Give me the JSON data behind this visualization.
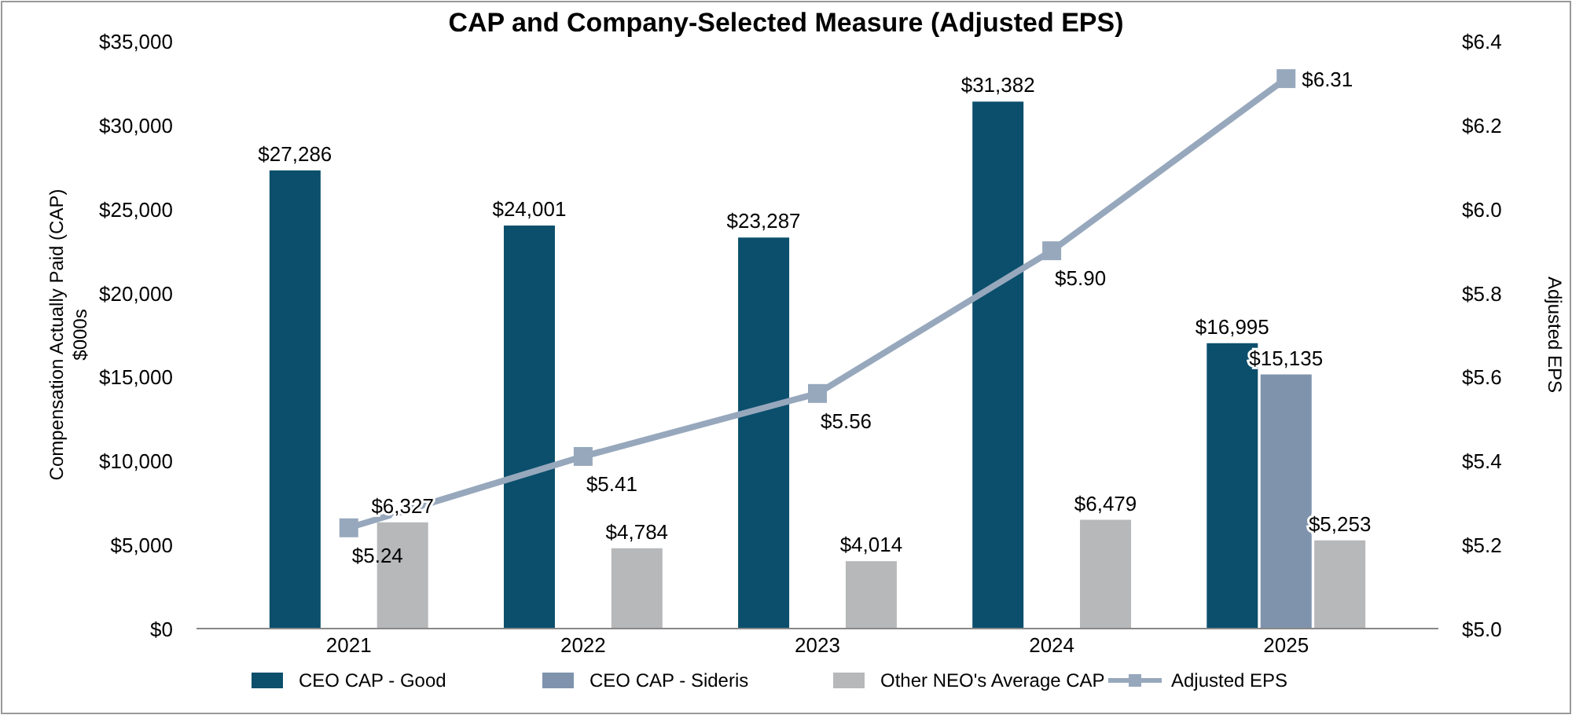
{
  "chart_data": {
    "type": "bar",
    "title": "CAP and Company-Selected Measure (Adjusted EPS)",
    "ylabel": "Compensation Actually Paid (CAP)\n$000s",
    "y2label": "Adjusted EPS",
    "categories": [
      "2021",
      "2022",
      "2023",
      "2024",
      "2025"
    ],
    "series": [
      {
        "name": "CEO CAP - Good",
        "color": "#0b4f6c",
        "values": [
          27286,
          24001,
          23287,
          31382,
          16995
        ],
        "value_labels": [
          "$27,286",
          "$24,001",
          "$23,287",
          "$31,382",
          "$16,995"
        ]
      },
      {
        "name": "CEO CAP - Sideris",
        "color": "#7f93ad",
        "values": [
          null,
          null,
          null,
          null,
          15135
        ],
        "value_labels": [
          null,
          null,
          null,
          null,
          "$15,135"
        ]
      },
      {
        "name": "Other NEO's Average CAP",
        "color": "#b7b8ba",
        "values": [
          6327,
          4784,
          4014,
          6479,
          5253
        ],
        "value_labels": [
          "$6,327",
          "$4,784",
          "$4,014",
          "$6,479",
          "$5,253"
        ]
      },
      {
        "name": "Adjusted EPS",
        "type": "line",
        "axis": "y2",
        "color": "#97a8bd",
        "values": [
          5.24,
          5.41,
          5.56,
          5.9,
          6.31
        ],
        "value_labels": [
          "$5.24",
          "$5.41",
          "$5.56",
          "$5.90",
          "$6.31"
        ]
      }
    ],
    "ylim": [
      0,
      35000
    ],
    "yticks": [
      {
        "value": 0,
        "label": "$0"
      },
      {
        "value": 5000,
        "label": "$5,000"
      },
      {
        "value": 10000,
        "label": "$10,000"
      },
      {
        "value": 15000,
        "label": "$15,000"
      },
      {
        "value": 20000,
        "label": "$20,000"
      },
      {
        "value": 25000,
        "label": "$25,000"
      },
      {
        "value": 30000,
        "label": "$30,000"
      },
      {
        "value": 35000,
        "label": "$35,000"
      }
    ],
    "y2lim": [
      5.0,
      6.4
    ],
    "y2ticks": [
      {
        "value": 5.0,
        "label": "$5.0"
      },
      {
        "value": 5.2,
        "label": "$5.2"
      },
      {
        "value": 5.4,
        "label": "$5.4"
      },
      {
        "value": 5.6,
        "label": "$5.6"
      },
      {
        "value": 5.8,
        "label": "$5.8"
      },
      {
        "value": 6.0,
        "label": "$6.0"
      },
      {
        "value": 6.2,
        "label": "$6.2"
      },
      {
        "value": 6.4,
        "label": "$6.4"
      }
    ],
    "grid": false,
    "legend": "bottom",
    "marker": "square",
    "line_style": "solid"
  }
}
